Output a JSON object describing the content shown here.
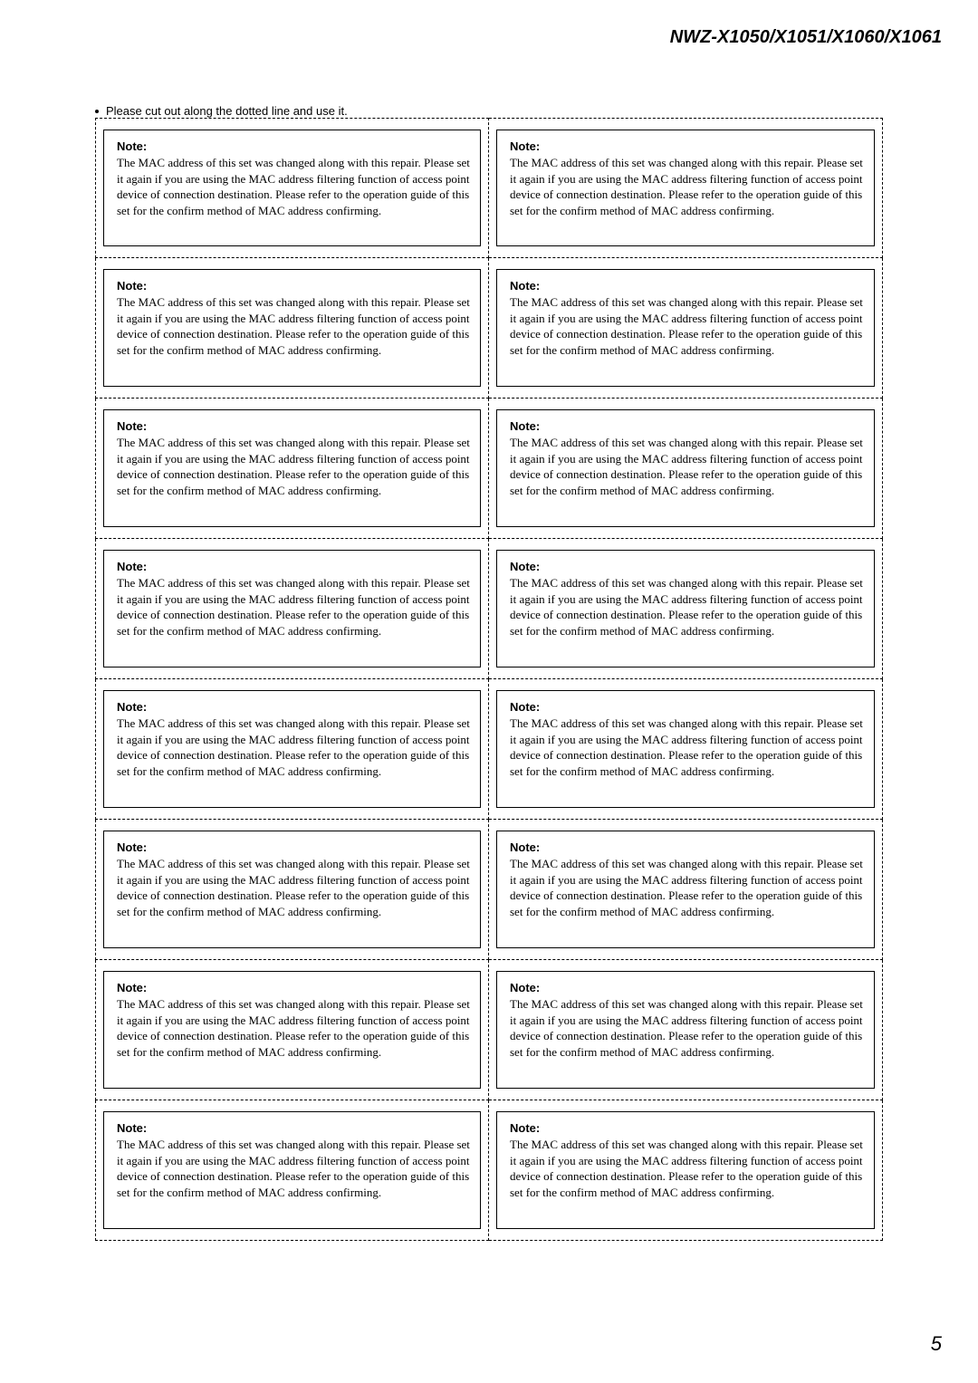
{
  "header": {
    "model_line": "NWZ-X1050/X1051/X1060/X1061"
  },
  "instruction": "Please cut out along the dotted line and use it.",
  "note": {
    "label": "Note:",
    "body": "The MAC address of this set was changed along with this repair.\nPlease set it again if you are using the MAC address filtering function of access point device of connection destination.\nPlease refer to the operation guide of this set for the confirm method of MAC address confirming."
  },
  "layout": {
    "rows": 8,
    "cols": 2,
    "card_border_color": "#000000",
    "dashed_border_color": "#000000",
    "background_color": "#ffffff",
    "note_label_fontsize": 13,
    "note_body_fontsize": 13,
    "note_body_font": "Times New Roman",
    "header_fontsize": 20,
    "instruction_fontsize": 13
  },
  "page_number": "5"
}
